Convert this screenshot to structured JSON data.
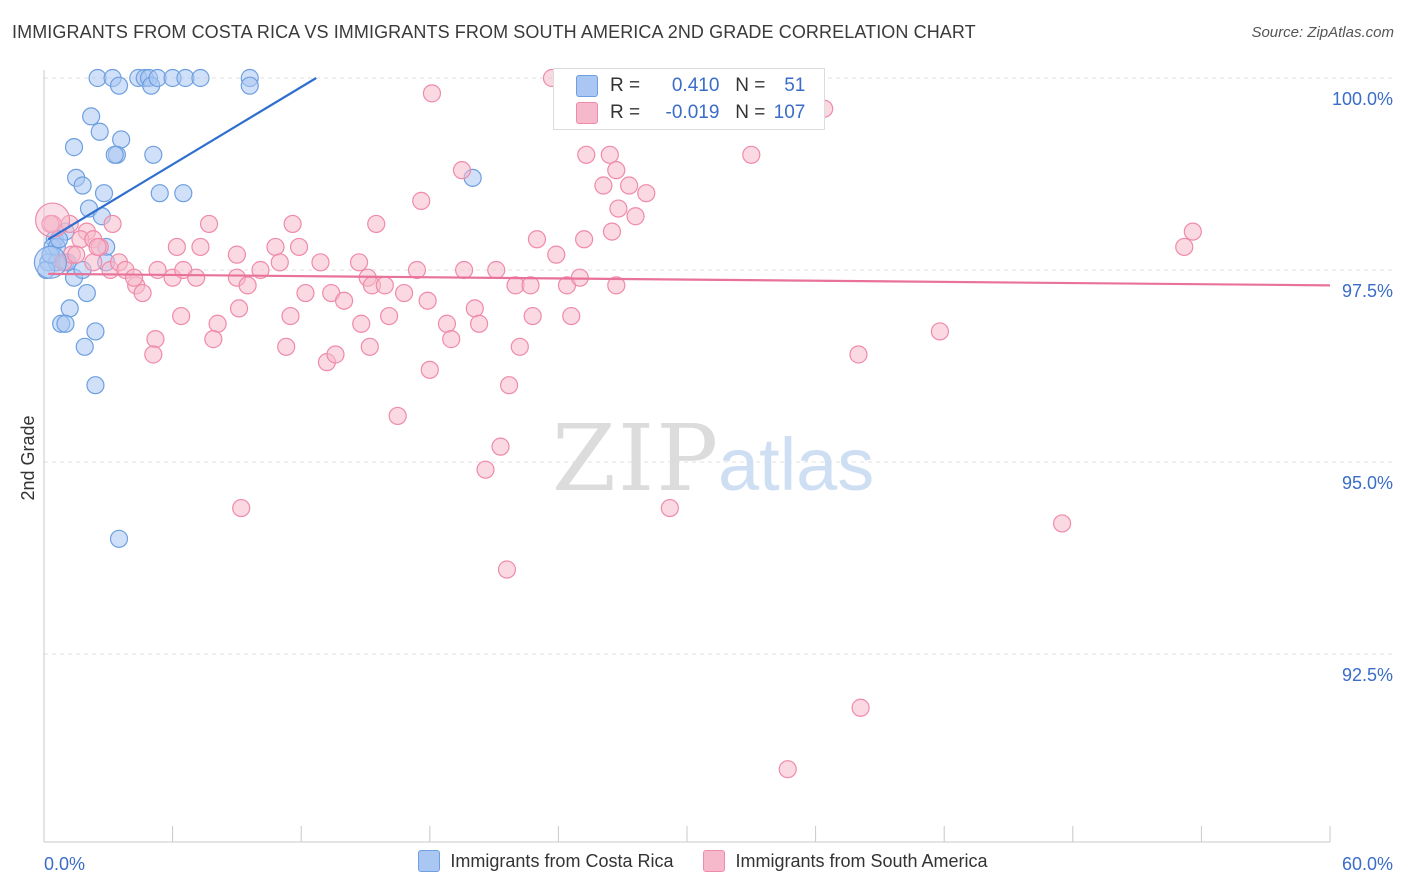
{
  "title": "IMMIGRANTS FROM COSTA RICA VS IMMIGRANTS FROM SOUTH AMERICA 2ND GRADE CORRELATION CHART",
  "source": "Source: ZipAtlas.com",
  "watermark": {
    "zip": "ZIP",
    "atlas": "atlas"
  },
  "stats_box": [
    {
      "r_label": "R =",
      "r_value": "0.410",
      "n_label": "N =",
      "n_value": "51",
      "color": "#a9c7f2"
    },
    {
      "r_label": "R =",
      "r_value": "-0.019",
      "n_label": "N =",
      "n_value": "107",
      "color": "#f5b9cb"
    }
  ],
  "chart_data": {
    "type": "scatter",
    "xlabel": "",
    "ylabel": "2nd Grade",
    "xlim": [
      0,
      60
    ],
    "ylim": [
      90.0,
      100.4
    ],
    "x_tick_labels": [
      "0.0%",
      "60.0%"
    ],
    "y_ticks": [
      92.5,
      95.0,
      97.5,
      100.0
    ],
    "y_tick_labels": [
      "92.5%",
      "95.0%",
      "97.5%",
      "100.0%"
    ],
    "grid": true,
    "legend_position": "bottom",
    "series": [
      {
        "name": "Immigrants from Costa Rica",
        "color": "#6e9fe0",
        "fill": "#a9c7f2",
        "trend": {
          "x": [
            0.2,
            12.7
          ],
          "y": [
            97.9,
            100.0
          ],
          "color": "#2f6fd0"
        },
        "points": [
          [
            2.5,
            100.0
          ],
          [
            3.2,
            100.0
          ],
          [
            3.5,
            99.9
          ],
          [
            4.4,
            100.0
          ],
          [
            4.7,
            100.0
          ],
          [
            4.9,
            100.0
          ],
          [
            5.0,
            99.9
          ],
          [
            5.3,
            100.0
          ],
          [
            6.0,
            100.0
          ],
          [
            6.6,
            100.0
          ],
          [
            7.3,
            100.0
          ],
          [
            9.6,
            100.0
          ],
          [
            9.6,
            99.9
          ],
          [
            2.2,
            99.5
          ],
          [
            2.6,
            99.3
          ],
          [
            1.4,
            99.1
          ],
          [
            3.6,
            99.2
          ],
          [
            3.4,
            99.0
          ],
          [
            3.3,
            99.0
          ],
          [
            5.1,
            99.0
          ],
          [
            1.5,
            98.7
          ],
          [
            1.8,
            98.6
          ],
          [
            2.8,
            98.5
          ],
          [
            5.4,
            98.5
          ],
          [
            6.5,
            98.5
          ],
          [
            2.1,
            98.3
          ],
          [
            2.7,
            98.2
          ],
          [
            0.5,
            97.9
          ],
          [
            1.0,
            98.0
          ],
          [
            0.4,
            97.8
          ],
          [
            0.6,
            97.8
          ],
          [
            2.9,
            97.8
          ],
          [
            0.2,
            97.6
          ],
          [
            0.6,
            97.6
          ],
          [
            1.0,
            97.6
          ],
          [
            1.1,
            97.6
          ],
          [
            2.9,
            97.6
          ],
          [
            0.1,
            97.5
          ],
          [
            1.4,
            97.4
          ],
          [
            1.8,
            97.5
          ],
          [
            2.0,
            97.2
          ],
          [
            1.2,
            97.0
          ],
          [
            0.8,
            96.8
          ],
          [
            1.0,
            96.8
          ],
          [
            2.4,
            96.7
          ],
          [
            1.9,
            96.5
          ],
          [
            2.4,
            96.0
          ],
          [
            3.5,
            94.0
          ],
          [
            20.0,
            98.7
          ],
          [
            0.7,
            97.9
          ],
          [
            0.3,
            97.7
          ]
        ]
      },
      {
        "name": "Immigrants from South America",
        "color": "#f08aaa",
        "fill": "#f5b9cb",
        "trend": {
          "x": [
            0.2,
            60.0
          ],
          "y": [
            97.45,
            97.3
          ],
          "color": "#e8729a"
        },
        "points": [
          [
            0.4,
            98.1
          ],
          [
            1.2,
            98.1
          ],
          [
            2.0,
            98.0
          ],
          [
            1.7,
            97.9
          ],
          [
            2.3,
            97.9
          ],
          [
            3.2,
            98.1
          ],
          [
            2.6,
            97.8
          ],
          [
            0.9,
            97.6
          ],
          [
            1.3,
            97.7
          ],
          [
            2.3,
            97.6
          ],
          [
            3.1,
            97.5
          ],
          [
            3.5,
            97.6
          ],
          [
            3.8,
            97.5
          ],
          [
            4.3,
            97.3
          ],
          [
            4.6,
            97.2
          ],
          [
            5.3,
            97.5
          ],
          [
            6.0,
            97.4
          ],
          [
            6.5,
            97.5
          ],
          [
            7.1,
            97.4
          ],
          [
            7.3,
            97.8
          ],
          [
            7.7,
            98.1
          ],
          [
            9.0,
            97.4
          ],
          [
            9.5,
            97.3
          ],
          [
            10.1,
            97.5
          ],
          [
            10.8,
            97.8
          ],
          [
            11.0,
            97.6
          ],
          [
            11.9,
            97.8
          ],
          [
            12.2,
            97.2
          ],
          [
            12.9,
            97.6
          ],
          [
            13.4,
            97.2
          ],
          [
            14.0,
            97.1
          ],
          [
            14.7,
            97.6
          ],
          [
            15.1,
            97.4
          ],
          [
            15.3,
            97.3
          ],
          [
            15.9,
            97.3
          ],
          [
            16.8,
            97.2
          ],
          [
            17.4,
            97.5
          ],
          [
            17.9,
            97.1
          ],
          [
            19.6,
            97.5
          ],
          [
            20.1,
            97.0
          ],
          [
            21.1,
            97.5
          ],
          [
            22.0,
            97.3
          ],
          [
            22.7,
            97.3
          ],
          [
            23.0,
            97.9
          ],
          [
            23.9,
            97.7
          ],
          [
            24.4,
            97.3
          ],
          [
            24.6,
            96.9
          ],
          [
            25.2,
            97.9
          ],
          [
            26.7,
            97.3
          ],
          [
            9.1,
            97.0
          ],
          [
            8.1,
            96.8
          ],
          [
            7.9,
            96.6
          ],
          [
            6.4,
            96.9
          ],
          [
            5.2,
            96.6
          ],
          [
            5.1,
            96.4
          ],
          [
            11.3,
            96.5
          ],
          [
            11.5,
            96.9
          ],
          [
            13.2,
            96.3
          ],
          [
            13.6,
            96.4
          ],
          [
            14.8,
            96.8
          ],
          [
            15.2,
            96.5
          ],
          [
            16.1,
            96.9
          ],
          [
            18.0,
            96.2
          ],
          [
            18.8,
            96.8
          ],
          [
            19.0,
            96.6
          ],
          [
            20.3,
            96.8
          ],
          [
            22.2,
            96.5
          ],
          [
            22.8,
            96.9
          ],
          [
            21.7,
            96.0
          ],
          [
            16.5,
            95.6
          ],
          [
            21.3,
            95.2
          ],
          [
            20.6,
            94.9
          ],
          [
            29.2,
            94.4
          ],
          [
            9.2,
            94.4
          ],
          [
            21.6,
            93.6
          ],
          [
            38.0,
            96.4
          ],
          [
            41.8,
            96.7
          ],
          [
            47.5,
            94.2
          ],
          [
            53.2,
            97.8
          ],
          [
            53.6,
            98.0
          ],
          [
            38.1,
            91.8
          ],
          [
            34.7,
            91.0
          ],
          [
            19.5,
            98.8
          ],
          [
            23.7,
            100.0
          ],
          [
            26.4,
            99.0
          ],
          [
            25.3,
            99.0
          ],
          [
            26.1,
            98.6
          ],
          [
            26.7,
            98.8
          ],
          [
            27.3,
            98.6
          ],
          [
            26.8,
            98.3
          ],
          [
            28.1,
            98.5
          ],
          [
            27.6,
            98.2
          ],
          [
            26.5,
            98.0
          ],
          [
            29.4,
            99.6
          ],
          [
            31.8,
            99.6
          ],
          [
            32.6,
            99.5
          ],
          [
            33.0,
            99.0
          ],
          [
            36.4,
            99.6
          ],
          [
            35.4,
            100.0
          ],
          [
            18.1,
            99.8
          ],
          [
            17.6,
            98.4
          ],
          [
            15.5,
            98.1
          ],
          [
            11.6,
            98.1
          ],
          [
            6.2,
            97.8
          ],
          [
            9.0,
            97.7
          ],
          [
            4.2,
            97.4
          ],
          [
            1.5,
            97.7
          ],
          [
            2.5,
            97.8
          ],
          [
            0.3,
            98.1
          ],
          [
            25.0,
            97.4
          ],
          [
            30.6,
            99.7
          ]
        ]
      }
    ]
  }
}
